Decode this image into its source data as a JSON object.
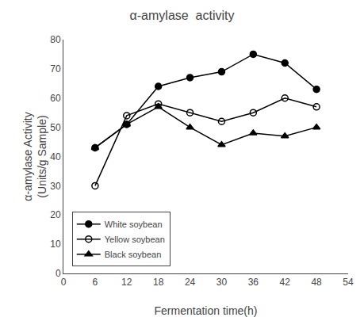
{
  "chart_data": {
    "type": "line",
    "title": "α-amylase  activity",
    "x_label": "Fermentation time(h)",
    "y_label": "α-amylase Activity\n(Units/g Sample)",
    "x": [
      6,
      12,
      18,
      24,
      30,
      36,
      42,
      48
    ],
    "series": [
      {
        "name": "White soybean",
        "color": "#000000",
        "marker": "circle",
        "values": [
          43,
          51,
          64,
          67,
          69,
          75,
          72,
          63
        ]
      },
      {
        "name": "Yellow soybean",
        "color": "#000000",
        "marker": "circle-open",
        "values": [
          30,
          54,
          58,
          55,
          52,
          55,
          60,
          57
        ]
      },
      {
        "name": "Black soybean",
        "color": "#000000",
        "marker": "triangle-up",
        "values": [
          43,
          51,
          57,
          50,
          44,
          48,
          47,
          50
        ]
      }
    ],
    "xlim": [
      0,
      54
    ],
    "ylim": [
      0,
      80
    ],
    "xticks": [
      0,
      6,
      12,
      18,
      24,
      30,
      36,
      42,
      48,
      54
    ],
    "yticks": [
      0,
      10,
      20,
      30,
      40,
      50,
      60,
      70,
      80
    ],
    "grid": false,
    "legend": "lower left"
  }
}
